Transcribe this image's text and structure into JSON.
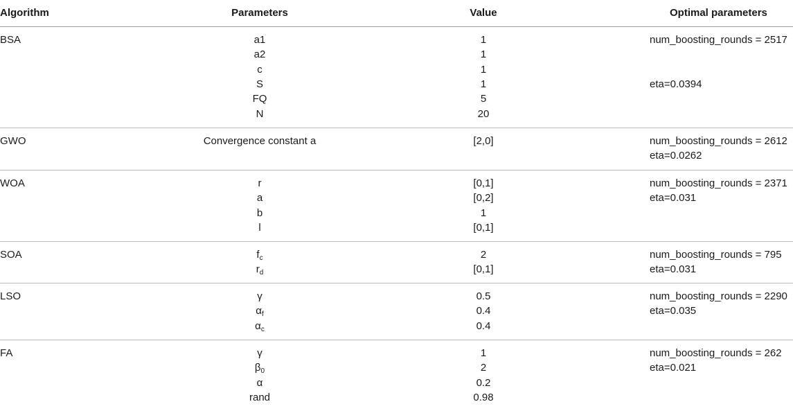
{
  "headers": {
    "algorithm": "Algorithm",
    "parameters": "Parameters",
    "value": "Value",
    "optimal": "Optimal parameters"
  },
  "groups": [
    {
      "algorithm": "BSA",
      "params": [
        {
          "name": "a1",
          "value": "1"
        },
        {
          "name": "a2",
          "value": "1"
        },
        {
          "name": "c",
          "value": "1"
        },
        {
          "name": "S",
          "value": "1"
        },
        {
          "name": "FQ",
          "value": "5"
        },
        {
          "name": "N",
          "value": "20"
        }
      ],
      "optimal": [
        {
          "text": "num_boosting_rounds = 2517",
          "row": 0
        },
        {
          "text": "eta=0.0394",
          "row": 3
        }
      ]
    },
    {
      "algorithm": "GWO",
      "params": [
        {
          "name": "Convergence constant a",
          "value": "[2,0]"
        }
      ],
      "optimal": [
        {
          "text": "num_boosting_rounds = 2612",
          "row": 0
        },
        {
          "text": "eta=0.0262",
          "row": 1
        }
      ]
    },
    {
      "algorithm": "WOA",
      "params": [
        {
          "name": "r",
          "value": "[0,1]"
        },
        {
          "name": "a",
          "value": "[0,2]"
        },
        {
          "name": "b",
          "value": "1"
        },
        {
          "name": "l",
          "value": "[0,1]"
        }
      ],
      "optimal": [
        {
          "text": "num_boosting_rounds = 2371",
          "row": 0
        },
        {
          "text": "eta=0.031",
          "row": 1
        }
      ]
    },
    {
      "algorithm": "SOA",
      "params": [
        {
          "name": "f",
          "sub": "c",
          "value": "2"
        },
        {
          "name": "r",
          "sub": "d",
          "value": "[0,1]"
        }
      ],
      "optimal": [
        {
          "text": "num_boosting_rounds = 795",
          "row": 0
        },
        {
          "text": "eta=0.031",
          "row": 1
        }
      ]
    },
    {
      "algorithm": "LSO",
      "params": [
        {
          "name": "γ",
          "value": "0.5"
        },
        {
          "name": "α",
          "sub": "f",
          "value": "0.4"
        },
        {
          "name": "α",
          "sub": "c",
          "value": "0.4"
        }
      ],
      "optimal": [
        {
          "text": "num_boosting_rounds = 2290",
          "row": 0
        },
        {
          "text": "eta=0.035",
          "row": 1
        }
      ]
    },
    {
      "algorithm": "FA",
      "params": [
        {
          "name": "γ",
          "value": "1"
        },
        {
          "name": "β",
          "sub": "0",
          "value": "2"
        },
        {
          "name": "α",
          "value": "0.2"
        },
        {
          "name": "rand",
          "value": "0.98"
        }
      ],
      "optimal": [
        {
          "text": "num_boosting_rounds = 262",
          "row": 0
        },
        {
          "text": "eta=0.021",
          "row": 1
        }
      ]
    }
  ]
}
